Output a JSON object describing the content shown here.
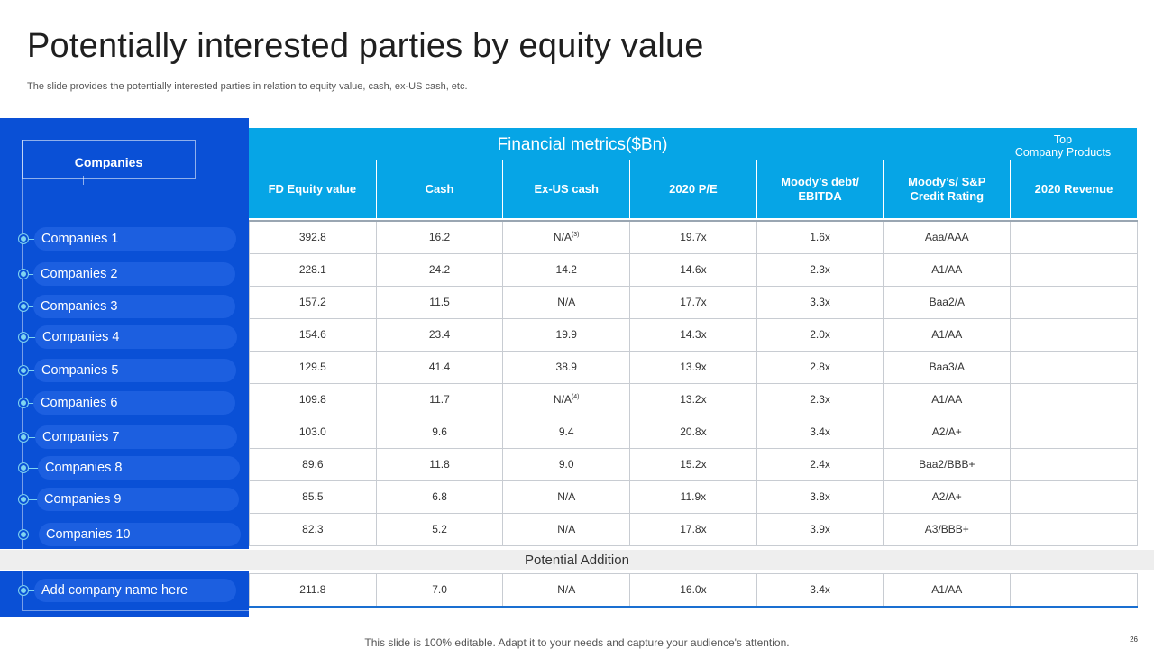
{
  "title": "Potentially interested parties by equity value",
  "subtitle": "The slide provides the potentially interested parties in relation to equity value, cash, ex-US cash, etc.",
  "companies_header": "Companies",
  "companies": [
    "Companies 1",
    "Companies 2",
    "Companies 3",
    "Companies 4",
    "Companies 5",
    "Companies 6",
    "Companies 7",
    "Companies 8",
    "Companies 9",
    "Companies 10"
  ],
  "add_company": "Add company name here",
  "table": {
    "group_title": "Financial metrics($Bn)",
    "top_products": "Top\nCompany Products",
    "columns": [
      "FD Equity value",
      "Cash",
      "Ex-US cash",
      "2020 P/E",
      "Moody’s debt/ EBITDA",
      "Moody’s/ S&P Credit Rating",
      "2020 Revenue"
    ],
    "rows": [
      [
        "392.8",
        "16.2",
        "N/A",
        "19.7x",
        "1.6x",
        "Aaa/AAA",
        ""
      ],
      [
        "228.1",
        "24.2",
        "14.2",
        "14.6x",
        "2.3x",
        "A1/AA",
        ""
      ],
      [
        "157.2",
        "11.5",
        "N/A",
        "17.7x",
        "3.3x",
        "Baa2/A",
        ""
      ],
      [
        "154.6",
        "23.4",
        "19.9",
        "14.3x",
        "2.0x",
        "A1/AA",
        ""
      ],
      [
        "129.5",
        "41.4",
        "38.9",
        "13.9x",
        "2.8x",
        "Baa3/A",
        ""
      ],
      [
        "109.8",
        "11.7",
        "N/A",
        "13.2x",
        "2.3x",
        "A1/AA",
        ""
      ],
      [
        "103.0",
        "9.6",
        "9.4",
        "20.8x",
        "3.4x",
        "A2/A+",
        ""
      ],
      [
        "89.6",
        "11.8",
        "9.0",
        "15.2x",
        "2.4x",
        "Baa2/BBB+",
        ""
      ],
      [
        "85.5",
        "6.8",
        "N/A",
        "11.9x",
        "3.8x",
        "A2/A+",
        ""
      ],
      [
        "82.3",
        "5.2",
        "N/A",
        "17.8x",
        "3.9x",
        "A3/BBB+",
        ""
      ]
    ],
    "footnotes": {
      "row0_col2": "(3)",
      "row5_col2": "(4)"
    },
    "potential_addition_label": "Potential Addition",
    "addition_row": [
      "211.8",
      "7.0",
      "N/A",
      "16.0x",
      "3.4x",
      "A1/AA",
      ""
    ]
  },
  "footer": "This slide is 100% editable. Adapt it to your needs and capture your audience's attention.",
  "page_number": "26",
  "colors": {
    "panel_blue": "#0a50d6",
    "header_cyan": "#06a5e6",
    "dot": "#7fd4f0"
  }
}
